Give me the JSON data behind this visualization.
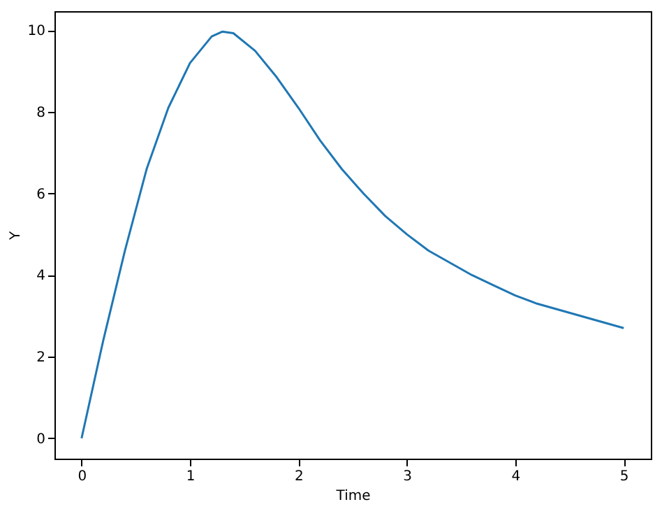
{
  "chart_data": {
    "type": "line",
    "xlabel": "Time",
    "ylabel": "Y",
    "x": [
      0,
      0.2,
      0.4,
      0.6,
      0.8,
      1.0,
      1.2,
      1.3,
      1.4,
      1.6,
      1.8,
      2.0,
      2.2,
      2.4,
      2.6,
      2.8,
      3.0,
      3.2,
      3.4,
      3.6,
      3.8,
      4.0,
      4.2,
      4.4,
      4.6,
      4.8,
      5.0
    ],
    "series": [
      {
        "color": "#1f77b4",
        "values": [
          0,
          2.4,
          4.6,
          6.6,
          8.1,
          9.2,
          9.85,
          9.97,
          9.93,
          9.5,
          8.85,
          8.1,
          7.3,
          6.6,
          6.0,
          5.45,
          5.0,
          4.6,
          4.3,
          4.0,
          3.75,
          3.5,
          3.3,
          3.15,
          3.0,
          2.85,
          2.7
        ]
      }
    ],
    "xlim": [
      -0.25,
      5.25
    ],
    "ylim": [
      -0.5,
      10.47
    ],
    "xticks": [
      0,
      1,
      2,
      3,
      4,
      5
    ],
    "yticks": [
      0,
      2,
      4,
      6,
      8,
      10
    ],
    "grid": false,
    "line_style": "solid",
    "marker": "none"
  }
}
